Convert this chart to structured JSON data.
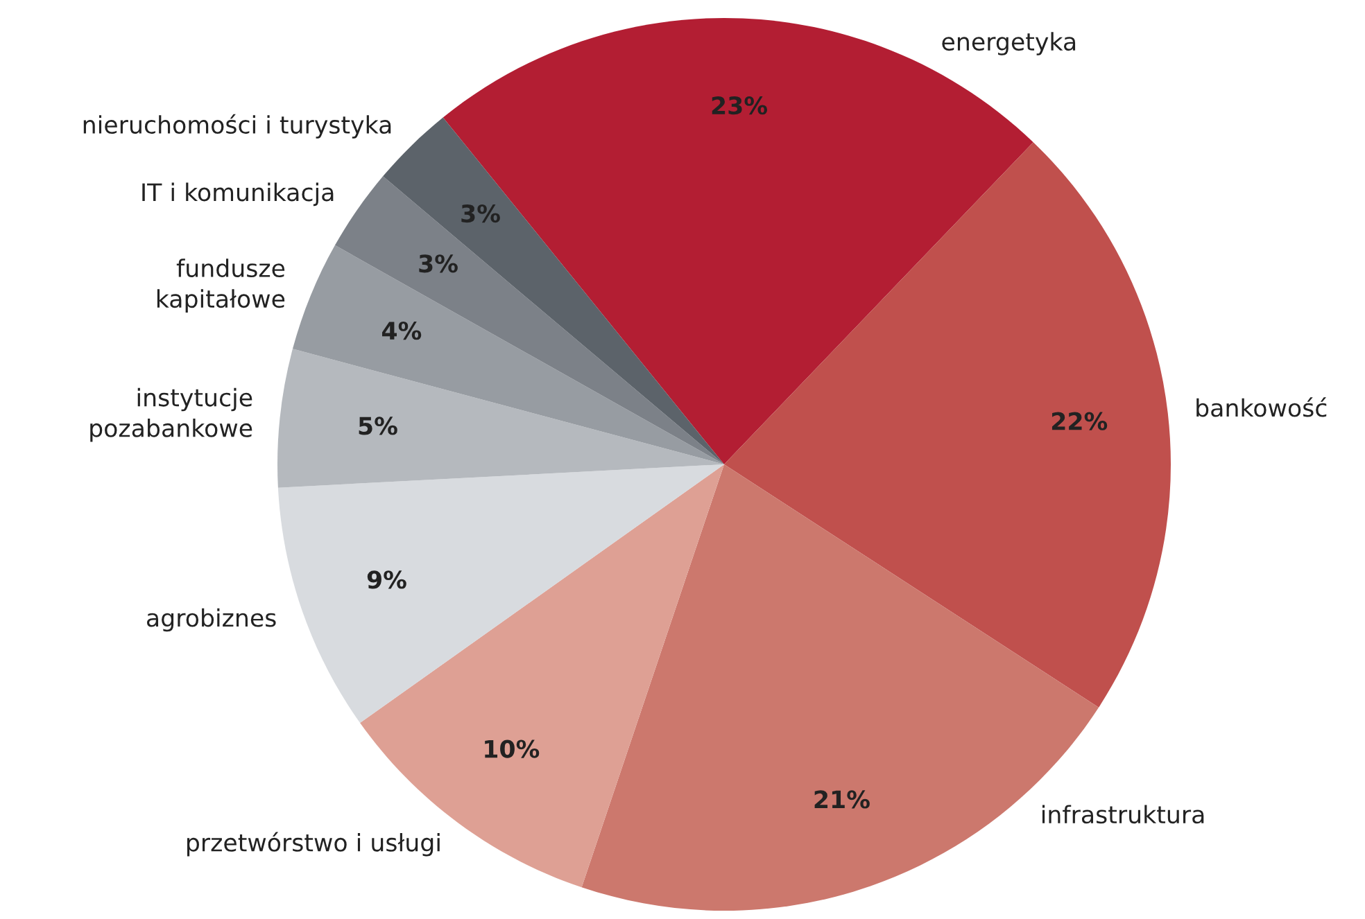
{
  "chart_data": {
    "type": "pie",
    "categories": [
      "energetyka",
      "bankowość",
      "infrastruktura",
      "przetwórstwo i usługi",
      "agrobiznes",
      "instytucje\npozabankowe",
      "fundusze\nkapitałowe",
      "IT i komunikacja",
      "nieruchomości i turystyka"
    ],
    "values": [
      23,
      22,
      21,
      10,
      9,
      5,
      4,
      3,
      3
    ],
    "colors": [
      "#b31e33",
      "#c0504d",
      "#cc786d",
      "#dea094",
      "#d8dbdf",
      "#b5b9be",
      "#979ca2",
      "#7c8188",
      "#5c636a"
    ],
    "value_labels": [
      "23%",
      "22%",
      "21%",
      "10%",
      "9%",
      "5%",
      "4%",
      "3%",
      "3%"
    ],
    "legend": false
  }
}
